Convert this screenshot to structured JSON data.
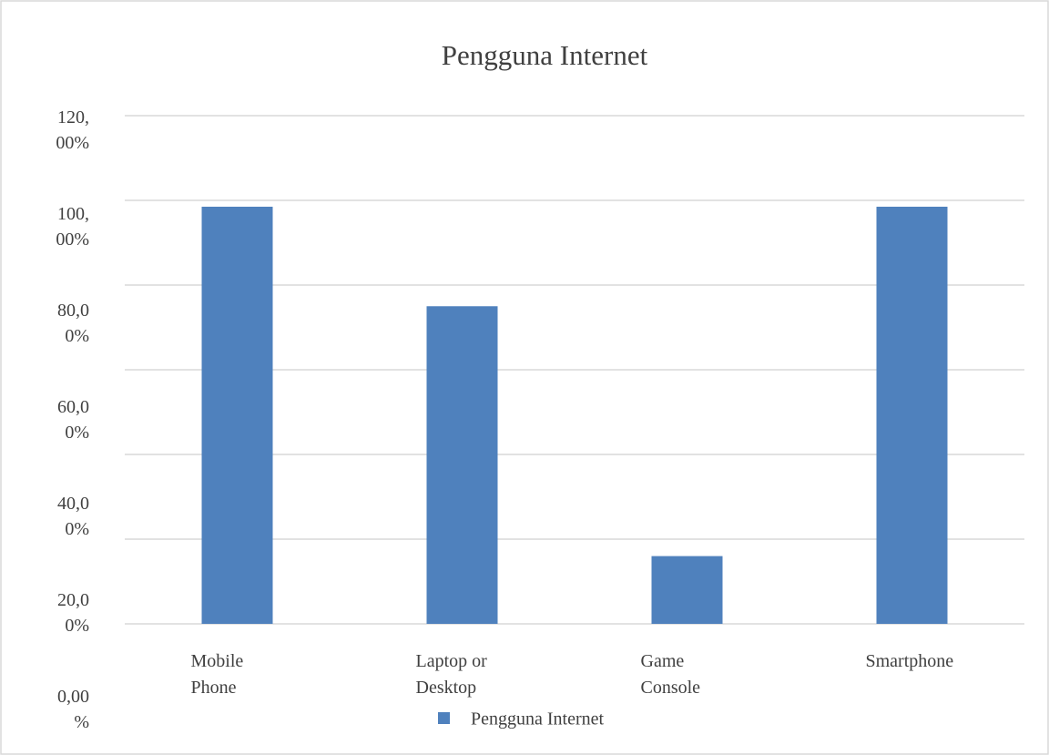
{
  "chart_data": {
    "type": "bar",
    "title": "Pengguna Internet",
    "categories": [
      "Mobile Phone",
      "Laptop or Desktop",
      "Game Console",
      "Smartphone"
    ],
    "series": [
      {
        "name": "Pengguna Internet",
        "color": "#4f81bd",
        "values": [
          98.5,
          75,
          16,
          98.5
        ]
      }
    ],
    "ylim": [
      0,
      120
    ],
    "yticks": [
      {
        "value": 0,
        "label": "0,00%"
      },
      {
        "value": 20,
        "label": "20,00%"
      },
      {
        "value": 40,
        "label": "40,00%"
      },
      {
        "value": 60,
        "label": "60,00%"
      },
      {
        "value": 80,
        "label": "80,00%"
      },
      {
        "value": 100,
        "label": "100,00%"
      },
      {
        "value": 120,
        "label": "120,00%"
      }
    ],
    "grid": true,
    "legend": "bottom"
  }
}
